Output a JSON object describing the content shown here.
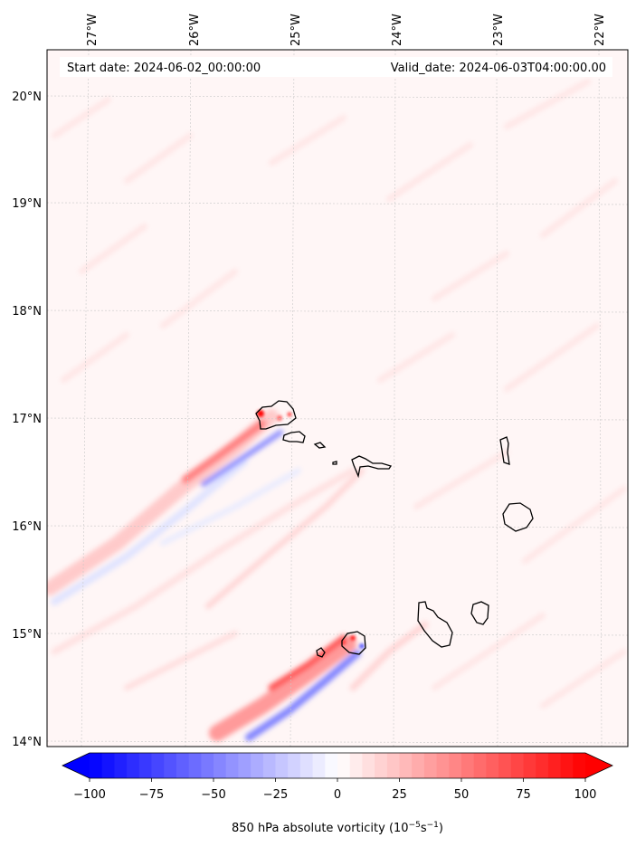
{
  "map": {
    "start_date_text": "Start date: 2024-06-02_00:00:00",
    "valid_date_text": "Valid_date: 2024-06-03T04:00:00.00",
    "lon_ticks": [
      "27°W",
      "26°W",
      "25°W",
      "24°W",
      "23°W",
      "22°W"
    ],
    "lat_ticks": [
      "20°N",
      "19°N",
      "18°N",
      "17°N",
      "16°N",
      "15°N",
      "14°N"
    ]
  },
  "colorbar": {
    "tick_labels": [
      "−100",
      "−75",
      "−50",
      "−25",
      "0",
      "25",
      "50",
      "75",
      "100"
    ],
    "label_prefix": "850 hPa absolute vorticity (10",
    "label_exp1": "−5",
    "label_mid": "s",
    "label_exp2": "−1",
    "label_suffix": ")",
    "min": -100,
    "max": 100,
    "color_low": "#0000ff",
    "color_mid": "#ffffff",
    "color_high": "#ff0000"
  }
}
